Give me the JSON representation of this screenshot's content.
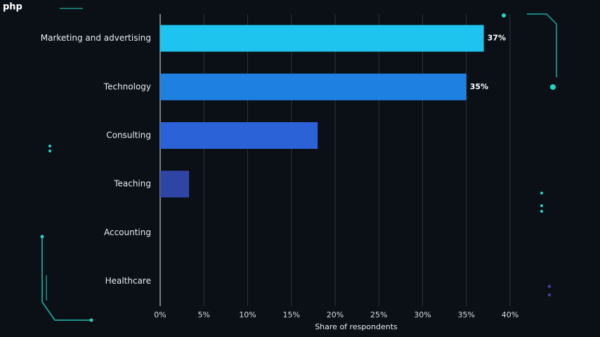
{
  "watermark": "php",
  "chart_data": {
    "type": "hbar",
    "categories": [
      "Marketing and advertising",
      "Technology",
      "Consulting",
      "Teaching",
      "Accounting",
      "Healthcare"
    ],
    "values": [
      37,
      35,
      18,
      3.3,
      0,
      0
    ],
    "value_labels": [
      "37%",
      "35%",
      null,
      null,
      null,
      null
    ],
    "colors": [
      "#1ec3ee",
      "#1e80e0",
      "#2c62d8",
      "#2f45a6",
      "#2f45a6",
      "#2f45a6"
    ],
    "xlim": [
      0,
      40
    ],
    "xticks": [
      {
        "value": 0,
        "label": "0%"
      },
      {
        "value": 5,
        "label": "5%"
      },
      {
        "value": 10,
        "label": "10%"
      },
      {
        "value": 15,
        "label": "15%"
      },
      {
        "value": 20,
        "label": "20%"
      },
      {
        "value": 25,
        "label": "25%"
      },
      {
        "value": 30,
        "label": "30%"
      },
      {
        "value": 35,
        "label": "35%"
      },
      {
        "value": 40,
        "label": "40%"
      }
    ],
    "xlabel": "Share of respondents",
    "grid": true
  }
}
